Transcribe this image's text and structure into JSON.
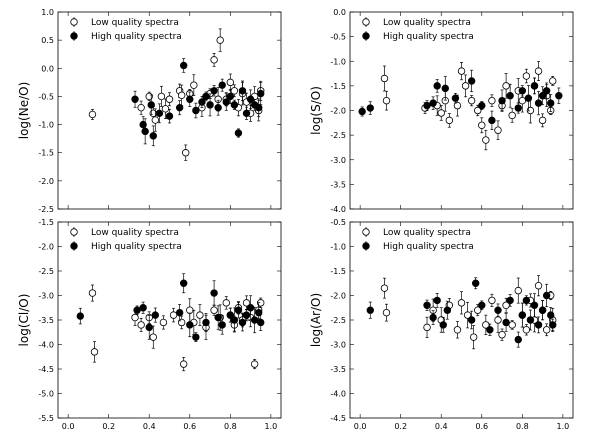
{
  "chart_data": [
    {
      "type": "scatter",
      "ylabel": "log(Ne/O)",
      "ylim": [
        -2.5,
        1.0
      ],
      "yticks": [
        -2.5,
        -2.0,
        -1.5,
        -1.0,
        -0.5,
        0.0,
        0.5,
        1.0
      ],
      "xlim": [
        -0.05,
        1.05
      ],
      "xticks": [
        0.0,
        0.2,
        0.4,
        0.6,
        0.8,
        1.0
      ],
      "legend_position": "top-left",
      "series": [
        {
          "name": "Low quality spectra",
          "marker": "open-circle",
          "points": [
            [
              0.12,
              -0.82
            ],
            [
              0.36,
              -0.7
            ],
            [
              0.4,
              -0.5
            ],
            [
              0.42,
              -0.8
            ],
            [
              0.43,
              -0.92
            ],
            [
              0.46,
              -0.5
            ],
            [
              0.48,
              -0.72
            ],
            [
              0.5,
              -0.55
            ],
            [
              0.55,
              -0.4
            ],
            [
              0.56,
              -0.48
            ],
            [
              0.58,
              -1.5
            ],
            [
              0.6,
              -0.45
            ],
            [
              0.62,
              -0.3
            ],
            [
              0.66,
              -0.7
            ],
            [
              0.7,
              -0.45
            ],
            [
              0.72,
              0.15
            ],
            [
              0.74,
              -0.55
            ],
            [
              0.75,
              0.5
            ],
            [
              0.78,
              -0.55
            ],
            [
              0.8,
              -0.25
            ],
            [
              0.82,
              -0.4
            ],
            [
              0.84,
              -0.7
            ],
            [
              0.86,
              -0.45
            ],
            [
              0.88,
              -0.6
            ],
            [
              0.9,
              -0.8
            ],
            [
              0.92,
              -0.5
            ],
            [
              0.94,
              -0.75
            ],
            [
              0.95,
              -0.4
            ]
          ]
        },
        {
          "name": "High quality spectra",
          "marker": "filled-circle",
          "points": [
            [
              0.33,
              -0.55
            ],
            [
              0.37,
              -1.0
            ],
            [
              0.38,
              -1.12
            ],
            [
              0.41,
              -0.65
            ],
            [
              0.42,
              -1.2
            ],
            [
              0.45,
              -0.8
            ],
            [
              0.5,
              -0.85
            ],
            [
              0.55,
              -0.7
            ],
            [
              0.57,
              0.05
            ],
            [
              0.6,
              -0.55
            ],
            [
              0.63,
              -0.75
            ],
            [
              0.66,
              -0.6
            ],
            [
              0.68,
              -0.5
            ],
            [
              0.7,
              -0.65
            ],
            [
              0.72,
              -0.4
            ],
            [
              0.74,
              -0.7
            ],
            [
              0.76,
              -0.3
            ],
            [
              0.78,
              -0.6
            ],
            [
              0.8,
              -0.5
            ],
            [
              0.82,
              -0.65
            ],
            [
              0.84,
              -1.15
            ],
            [
              0.86,
              -0.4
            ],
            [
              0.88,
              -0.8
            ],
            [
              0.9,
              -0.55
            ],
            [
              0.92,
              -0.65
            ],
            [
              0.94,
              -0.7
            ],
            [
              0.95,
              -0.45
            ]
          ]
        }
      ]
    },
    {
      "type": "scatter",
      "ylabel": "log(S/O)",
      "ylim": [
        -4.0,
        0.0
      ],
      "yticks": [
        -4.0,
        -3.5,
        -3.0,
        -2.5,
        -2.0,
        -1.5,
        -1.0,
        -0.5,
        0.0
      ],
      "xlim": [
        -0.05,
        1.05
      ],
      "xticks": [
        0.0,
        0.2,
        0.4,
        0.6,
        0.8,
        1.0
      ],
      "legend_position": "top-left",
      "series": [
        {
          "name": "Low quality spectra",
          "marker": "open-circle",
          "points": [
            [
              0.12,
              -1.35
            ],
            [
              0.13,
              -1.8
            ],
            [
              0.32,
              -1.95
            ],
            [
              0.38,
              -1.9
            ],
            [
              0.4,
              -2.05
            ],
            [
              0.42,
              -1.8
            ],
            [
              0.44,
              -2.2
            ],
            [
              0.48,
              -1.9
            ],
            [
              0.5,
              -1.2
            ],
            [
              0.52,
              -1.5
            ],
            [
              0.55,
              -1.8
            ],
            [
              0.58,
              -2.0
            ],
            [
              0.6,
              -2.3
            ],
            [
              0.62,
              -2.6
            ],
            [
              0.65,
              -1.8
            ],
            [
              0.68,
              -2.4
            ],
            [
              0.7,
              -1.9
            ],
            [
              0.72,
              -1.5
            ],
            [
              0.75,
              -2.1
            ],
            [
              0.78,
              -1.6
            ],
            [
              0.8,
              -1.8
            ],
            [
              0.82,
              -1.3
            ],
            [
              0.84,
              -2.0
            ],
            [
              0.86,
              -1.5
            ],
            [
              0.88,
              -1.2
            ],
            [
              0.9,
              -2.2
            ],
            [
              0.92,
              -1.7
            ],
            [
              0.94,
              -2.0
            ],
            [
              0.95,
              -1.4
            ]
          ]
        },
        {
          "name": "High quality spectra",
          "marker": "filled-circle",
          "points": [
            [
              0.01,
              -2.02
            ],
            [
              0.05,
              -1.95
            ],
            [
              0.33,
              -1.9
            ],
            [
              0.36,
              -1.85
            ],
            [
              0.38,
              -1.5
            ],
            [
              0.42,
              -1.55
            ],
            [
              0.47,
              -1.75
            ],
            [
              0.55,
              -1.4
            ],
            [
              0.6,
              -1.9
            ],
            [
              0.65,
              -2.2
            ],
            [
              0.7,
              -1.8
            ],
            [
              0.74,
              -1.7
            ],
            [
              0.78,
              -1.95
            ],
            [
              0.8,
              -1.6
            ],
            [
              0.83,
              -1.75
            ],
            [
              0.86,
              -1.5
            ],
            [
              0.88,
              -1.85
            ],
            [
              0.9,
              -1.7
            ],
            [
              0.92,
              -1.6
            ],
            [
              0.94,
              -1.85
            ],
            [
              0.98,
              -1.7
            ]
          ]
        }
      ]
    },
    {
      "type": "scatter",
      "ylabel": "log(Cl/O)",
      "ylim": [
        -5.5,
        -1.5
      ],
      "yticks": [
        -5.5,
        -5.0,
        -4.5,
        -4.0,
        -3.5,
        -3.0,
        -2.5,
        -2.0,
        -1.5
      ],
      "xlim": [
        -0.05,
        1.05
      ],
      "xticks": [
        0.0,
        0.2,
        0.4,
        0.6,
        0.8,
        1.0
      ],
      "legend_position": "top-left",
      "series": [
        {
          "name": "Low quality spectra",
          "marker": "open-circle",
          "points": [
            [
              0.12,
              -2.95
            ],
            [
              0.13,
              -4.15
            ],
            [
              0.33,
              -3.45
            ],
            [
              0.36,
              -3.6
            ],
            [
              0.4,
              -3.45
            ],
            [
              0.42,
              -3.85
            ],
            [
              0.47,
              -3.55
            ],
            [
              0.52,
              -3.4
            ],
            [
              0.56,
              -3.55
            ],
            [
              0.57,
              -4.4
            ],
            [
              0.6,
              -3.3
            ],
            [
              0.62,
              -3.55
            ],
            [
              0.65,
              -3.4
            ],
            [
              0.68,
              -3.65
            ],
            [
              0.72,
              -3.3
            ],
            [
              0.75,
              -3.45
            ],
            [
              0.78,
              -3.15
            ],
            [
              0.8,
              -3.4
            ],
            [
              0.82,
              -3.6
            ],
            [
              0.84,
              -3.25
            ],
            [
              0.86,
              -3.5
            ],
            [
              0.88,
              -3.15
            ],
            [
              0.9,
              -3.45
            ],
            [
              0.92,
              -4.4
            ],
            [
              0.94,
              -3.3
            ],
            [
              0.95,
              -3.15
            ]
          ]
        },
        {
          "name": "High quality spectra",
          "marker": "filled-circle",
          "points": [
            [
              0.06,
              -3.42
            ],
            [
              0.34,
              -3.3
            ],
            [
              0.37,
              -3.25
            ],
            [
              0.4,
              -3.65
            ],
            [
              0.43,
              -3.4
            ],
            [
              0.55,
              -3.35
            ],
            [
              0.57,
              -2.75
            ],
            [
              0.6,
              -3.6
            ],
            [
              0.63,
              -3.85
            ],
            [
              0.68,
              -3.55
            ],
            [
              0.72,
              -2.95
            ],
            [
              0.74,
              -3.45
            ],
            [
              0.76,
              -3.6
            ],
            [
              0.8,
              -3.4
            ],
            [
              0.82,
              -3.5
            ],
            [
              0.84,
              -3.3
            ],
            [
              0.86,
              -3.55
            ],
            [
              0.88,
              -3.4
            ],
            [
              0.9,
              -3.25
            ],
            [
              0.92,
              -3.5
            ],
            [
              0.94,
              -3.35
            ],
            [
              0.95,
              -3.55
            ]
          ]
        }
      ]
    },
    {
      "type": "scatter",
      "ylabel": "log(Ar/O)",
      "ylim": [
        -4.5,
        -0.5
      ],
      "yticks": [
        -4.5,
        -4.0,
        -3.5,
        -3.0,
        -2.5,
        -2.0,
        -1.5,
        -1.0,
        -0.5
      ],
      "xlim": [
        -0.05,
        1.05
      ],
      "xticks": [
        0.0,
        0.2,
        0.4,
        0.6,
        0.8,
        1.0
      ],
      "legend_position": "top-left",
      "series": [
        {
          "name": "Low quality spectra",
          "marker": "open-circle",
          "points": [
            [
              0.12,
              -1.85
            ],
            [
              0.13,
              -2.35
            ],
            [
              0.33,
              -2.65
            ],
            [
              0.36,
              -2.3
            ],
            [
              0.4,
              -2.5
            ],
            [
              0.44,
              -2.2
            ],
            [
              0.48,
              -2.7
            ],
            [
              0.5,
              -2.15
            ],
            [
              0.53,
              -2.4
            ],
            [
              0.56,
              -2.85
            ],
            [
              0.58,
              -2.3
            ],
            [
              0.62,
              -2.6
            ],
            [
              0.65,
              -2.1
            ],
            [
              0.68,
              -2.5
            ],
            [
              0.7,
              -2.8
            ],
            [
              0.72,
              -2.2
            ],
            [
              0.75,
              -2.6
            ],
            [
              0.78,
              -1.9
            ],
            [
              0.8,
              -2.4
            ],
            [
              0.82,
              -2.7
            ],
            [
              0.84,
              -2.1
            ],
            [
              0.86,
              -2.5
            ],
            [
              0.88,
              -1.8
            ],
            [
              0.9,
              -2.3
            ],
            [
              0.92,
              -2.7
            ],
            [
              0.94,
              -2.0
            ],
            [
              0.95,
              -2.5
            ]
          ]
        },
        {
          "name": "High quality spectra",
          "marker": "filled-circle",
          "points": [
            [
              0.05,
              -2.3
            ],
            [
              0.33,
              -2.2
            ],
            [
              0.36,
              -2.45
            ],
            [
              0.38,
              -2.1
            ],
            [
              0.41,
              -2.6
            ],
            [
              0.43,
              -2.3
            ],
            [
              0.55,
              -2.5
            ],
            [
              0.57,
              -1.75
            ],
            [
              0.6,
              -2.2
            ],
            [
              0.64,
              -2.7
            ],
            [
              0.68,
              -2.3
            ],
            [
              0.72,
              -2.55
            ],
            [
              0.74,
              -2.1
            ],
            [
              0.78,
              -2.9
            ],
            [
              0.8,
              -2.4
            ],
            [
              0.82,
              -2.1
            ],
            [
              0.84,
              -2.5
            ],
            [
              0.86,
              -2.2
            ],
            [
              0.88,
              -2.6
            ],
            [
              0.9,
              -2.3
            ],
            [
              0.92,
              -2.0
            ],
            [
              0.94,
              -2.4
            ],
            [
              0.95,
              -2.6
            ]
          ]
        }
      ]
    }
  ]
}
